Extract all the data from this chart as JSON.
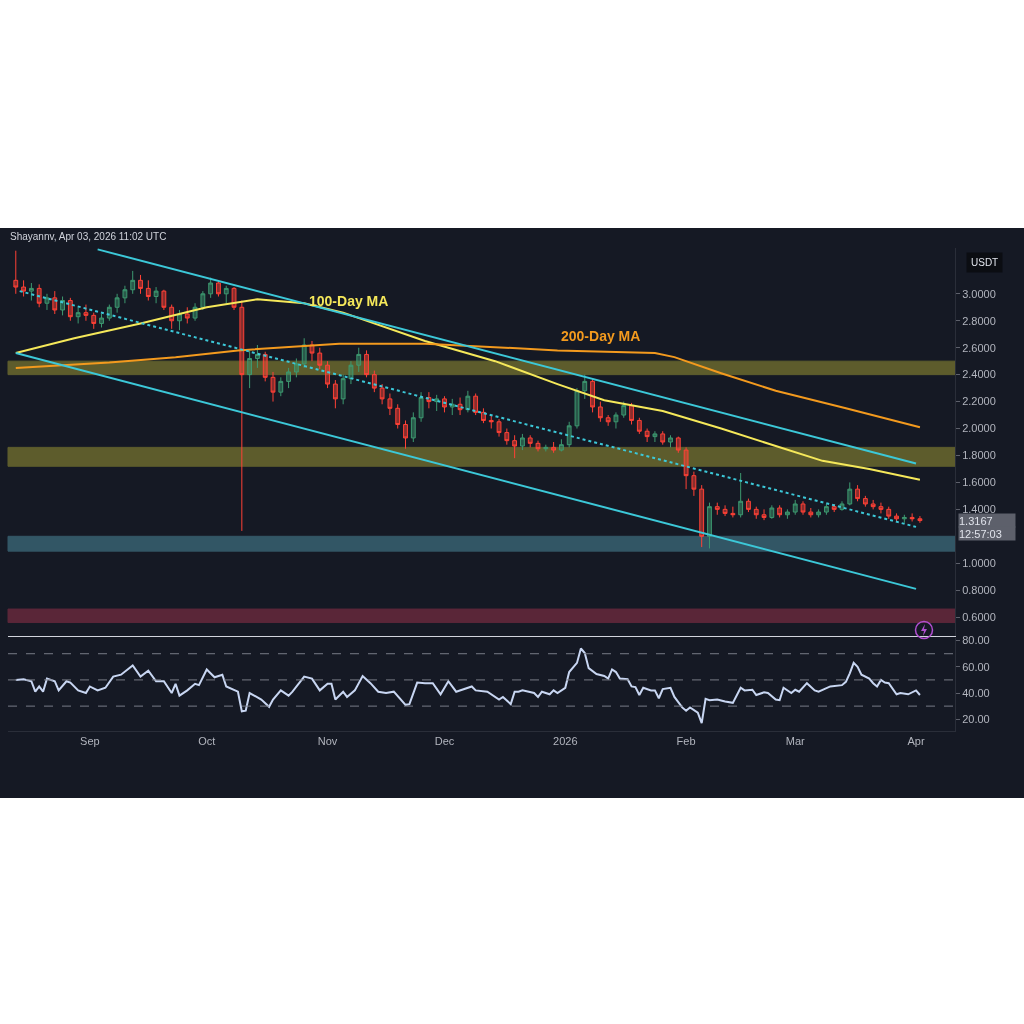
{
  "chart_data": [
    {
      "type": "candlestick",
      "ylabel": "USDT",
      "annotations": [
        "Shayannv, Apr 03, 2026 11:02 UTC",
        "1.3167",
        "12:57:03"
      ],
      "x": [
        "2025-08-13",
        "2025-08-15",
        "2025-08-17",
        "2025-08-19",
        "2025-08-21",
        "2025-08-23",
        "2025-08-25",
        "2025-08-27",
        "2025-08-29",
        "2025-08-31",
        "2025-09-02",
        "2025-09-04",
        "2025-09-06",
        "2025-09-08",
        "2025-09-10",
        "2025-09-12",
        "2025-09-14",
        "2025-09-16",
        "2025-09-18",
        "2025-09-20",
        "2025-09-22",
        "2025-09-24",
        "2025-09-26",
        "2025-09-28",
        "2025-09-30",
        "2025-10-02",
        "2025-10-04",
        "2025-10-06",
        "2025-10-08",
        "2025-10-10",
        "2025-10-12",
        "2025-10-14",
        "2025-10-16",
        "2025-10-18",
        "2025-10-20",
        "2025-10-22",
        "2025-10-24",
        "2025-10-26",
        "2025-10-28",
        "2025-10-30",
        "2025-11-01",
        "2025-11-03",
        "2025-11-05",
        "2025-11-07",
        "2025-11-09",
        "2025-11-11",
        "2025-11-13",
        "2025-11-15",
        "2025-11-17",
        "2025-11-19",
        "2025-11-21",
        "2025-11-23",
        "2025-11-25",
        "2025-11-27",
        "2025-11-29",
        "2025-12-01",
        "2025-12-03",
        "2025-12-05",
        "2025-12-07",
        "2025-12-09",
        "2025-12-11",
        "2025-12-13",
        "2025-12-15",
        "2025-12-17",
        "2025-12-19",
        "2025-12-21",
        "2025-12-23",
        "2025-12-25",
        "2025-12-27",
        "2025-12-29",
        "2025-12-31",
        "2026-01-02",
        "2026-01-04",
        "2026-01-06",
        "2026-01-08",
        "2026-01-10",
        "2026-01-12",
        "2026-01-14",
        "2026-01-16",
        "2026-01-18",
        "2026-01-20",
        "2026-01-22",
        "2026-01-24",
        "2026-01-26",
        "2026-01-28",
        "2026-01-30",
        "2026-02-01",
        "2026-02-03",
        "2026-02-05",
        "2026-02-07",
        "2026-02-09",
        "2026-02-11",
        "2026-02-13",
        "2026-02-15",
        "2026-02-17",
        "2026-02-19",
        "2026-02-21",
        "2026-02-23",
        "2026-02-25",
        "2026-02-27",
        "2026-03-01",
        "2026-03-03",
        "2026-03-05",
        "2026-03-07",
        "2026-03-09",
        "2026-03-11",
        "2026-03-13",
        "2026-03-15",
        "2026-03-17",
        "2026-03-19",
        "2026-03-21",
        "2026-03-23",
        "2026-03-25",
        "2026-03-27",
        "2026-03-29",
        "2026-03-31",
        "2026-04-02"
      ],
      "ohlc": [
        [
          3.1,
          3.32,
          3.0,
          3.05
        ],
        [
          3.05,
          3.1,
          2.98,
          3.02
        ],
        [
          3.02,
          3.08,
          2.95,
          3.04
        ],
        [
          3.04,
          3.07,
          2.9,
          2.93
        ],
        [
          2.93,
          3.0,
          2.88,
          2.97
        ],
        [
          2.97,
          3.02,
          2.85,
          2.88
        ],
        [
          2.88,
          2.98,
          2.84,
          2.95
        ],
        [
          2.95,
          2.97,
          2.8,
          2.83
        ],
        [
          2.83,
          2.9,
          2.78,
          2.86
        ],
        [
          2.86,
          2.92,
          2.8,
          2.84
        ],
        [
          2.84,
          2.86,
          2.74,
          2.78
        ],
        [
          2.78,
          2.85,
          2.75,
          2.82
        ],
        [
          2.82,
          2.92,
          2.8,
          2.9
        ],
        [
          2.9,
          3.0,
          2.86,
          2.97
        ],
        [
          2.97,
          3.06,
          2.93,
          3.03
        ],
        [
          3.03,
          3.17,
          3.0,
          3.1
        ],
        [
          3.1,
          3.14,
          3.0,
          3.04
        ],
        [
          3.04,
          3.1,
          2.95,
          2.98
        ],
        [
          2.98,
          3.05,
          2.93,
          3.02
        ],
        [
          3.02,
          3.03,
          2.88,
          2.9
        ],
        [
          2.9,
          2.92,
          2.74,
          2.8
        ],
        [
          2.8,
          2.88,
          2.73,
          2.85
        ],
        [
          2.85,
          2.9,
          2.78,
          2.82
        ],
        [
          2.82,
          2.93,
          2.8,
          2.9
        ],
        [
          2.9,
          3.02,
          2.88,
          3.0
        ],
        [
          3.0,
          3.12,
          2.97,
          3.08
        ],
        [
          3.08,
          3.1,
          2.98,
          3.0
        ],
        [
          3.0,
          3.06,
          2.93,
          3.04
        ],
        [
          3.04,
          3.05,
          2.88,
          2.9
        ],
        [
          2.9,
          2.95,
          1.24,
          2.4
        ],
        [
          2.4,
          2.58,
          2.3,
          2.52
        ],
        [
          2.52,
          2.62,
          2.45,
          2.55
        ],
        [
          2.55,
          2.57,
          2.35,
          2.38
        ],
        [
          2.38,
          2.42,
          2.2,
          2.27
        ],
        [
          2.27,
          2.38,
          2.24,
          2.35
        ],
        [
          2.35,
          2.45,
          2.3,
          2.42
        ],
        [
          2.42,
          2.52,
          2.38,
          2.48
        ],
        [
          2.48,
          2.67,
          2.45,
          2.62
        ],
        [
          2.62,
          2.65,
          2.5,
          2.56
        ],
        [
          2.56,
          2.6,
          2.44,
          2.47
        ],
        [
          2.47,
          2.5,
          2.3,
          2.33
        ],
        [
          2.33,
          2.36,
          2.15,
          2.22
        ],
        [
          2.22,
          2.4,
          2.18,
          2.37
        ],
        [
          2.37,
          2.5,
          2.33,
          2.47
        ],
        [
          2.47,
          2.6,
          2.42,
          2.55
        ],
        [
          2.55,
          2.58,
          2.38,
          2.4
        ],
        [
          2.4,
          2.43,
          2.27,
          2.3
        ],
        [
          2.3,
          2.33,
          2.18,
          2.22
        ],
        [
          2.22,
          2.26,
          2.1,
          2.15
        ],
        [
          2.15,
          2.18,
          2.0,
          2.03
        ],
        [
          2.03,
          2.06,
          1.85,
          1.93
        ],
        [
          1.93,
          2.12,
          1.9,
          2.08
        ],
        [
          2.08,
          2.27,
          2.05,
          2.23
        ],
        [
          2.23,
          2.27,
          2.15,
          2.2
        ],
        [
          2.2,
          2.25,
          2.13,
          2.22
        ],
        [
          2.22,
          2.24,
          2.12,
          2.16
        ],
        [
          2.16,
          2.22,
          2.1,
          2.18
        ],
        [
          2.18,
          2.23,
          2.1,
          2.14
        ],
        [
          2.14,
          2.28,
          2.12,
          2.24
        ],
        [
          2.24,
          2.26,
          2.1,
          2.12
        ],
        [
          2.12,
          2.15,
          2.04,
          2.06
        ],
        [
          2.06,
          2.1,
          2.0,
          2.05
        ],
        [
          2.05,
          2.07,
          1.94,
          1.97
        ],
        [
          1.97,
          2.0,
          1.88,
          1.91
        ],
        [
          1.91,
          1.95,
          1.78,
          1.87
        ],
        [
          1.87,
          1.96,
          1.84,
          1.93
        ],
        [
          1.93,
          1.95,
          1.86,
          1.89
        ],
        [
          1.89,
          1.91,
          1.83,
          1.85
        ],
        [
          1.85,
          1.88,
          1.83,
          1.86
        ],
        [
          1.86,
          1.9,
          1.82,
          1.84
        ],
        [
          1.84,
          1.92,
          1.83,
          1.88
        ],
        [
          1.88,
          2.05,
          1.86,
          2.02
        ],
        [
          2.02,
          2.3,
          2.0,
          2.28
        ],
        [
          2.28,
          2.4,
          2.22,
          2.35
        ],
        [
          2.35,
          2.37,
          2.12,
          2.16
        ],
        [
          2.16,
          2.2,
          2.05,
          2.08
        ],
        [
          2.08,
          2.1,
          2.02,
          2.05
        ],
        [
          2.05,
          2.12,
          2.0,
          2.1
        ],
        [
          2.1,
          2.2,
          2.08,
          2.17
        ],
        [
          2.17,
          2.19,
          2.03,
          2.06
        ],
        [
          2.06,
          2.08,
          1.96,
          1.98
        ],
        [
          1.98,
          2.0,
          1.9,
          1.94
        ],
        [
          1.94,
          1.98,
          1.9,
          1.96
        ],
        [
          1.96,
          1.98,
          1.88,
          1.9
        ],
        [
          1.9,
          1.95,
          1.86,
          1.93
        ],
        [
          1.93,
          1.94,
          1.82,
          1.84
        ],
        [
          1.84,
          1.86,
          1.55,
          1.65
        ],
        [
          1.65,
          1.68,
          1.5,
          1.55
        ],
        [
          1.55,
          1.58,
          1.12,
          1.2
        ],
        [
          1.2,
          1.45,
          1.11,
          1.42
        ],
        [
          1.42,
          1.45,
          1.36,
          1.4
        ],
        [
          1.4,
          1.43,
          1.35,
          1.37
        ],
        [
          1.37,
          1.42,
          1.34,
          1.36
        ],
        [
          1.36,
          1.67,
          1.34,
          1.46
        ],
        [
          1.46,
          1.48,
          1.38,
          1.4
        ],
        [
          1.4,
          1.42,
          1.33,
          1.36
        ],
        [
          1.36,
          1.4,
          1.32,
          1.34
        ],
        [
          1.34,
          1.43,
          1.33,
          1.41
        ],
        [
          1.41,
          1.43,
          1.34,
          1.36
        ],
        [
          1.36,
          1.4,
          1.33,
          1.38
        ],
        [
          1.38,
          1.47,
          1.36,
          1.44
        ],
        [
          1.44,
          1.46,
          1.36,
          1.38
        ],
        [
          1.38,
          1.41,
          1.34,
          1.36
        ],
        [
          1.36,
          1.4,
          1.34,
          1.38
        ],
        [
          1.38,
          1.44,
          1.36,
          1.42
        ],
        [
          1.42,
          1.44,
          1.38,
          1.4
        ],
        [
          1.4,
          1.46,
          1.39,
          1.44
        ],
        [
          1.44,
          1.6,
          1.43,
          1.55
        ],
        [
          1.55,
          1.58,
          1.46,
          1.48
        ],
        [
          1.48,
          1.5,
          1.42,
          1.44
        ],
        [
          1.44,
          1.47,
          1.4,
          1.42
        ],
        [
          1.42,
          1.45,
          1.37,
          1.4
        ],
        [
          1.4,
          1.42,
          1.33,
          1.35
        ],
        [
          1.35,
          1.37,
          1.31,
          1.33
        ],
        [
          1.33,
          1.36,
          1.3,
          1.34
        ],
        [
          1.34,
          1.37,
          1.31,
          1.33
        ],
        [
          1.33,
          1.35,
          1.3,
          1.3167
        ]
      ],
      "series": [
        {
          "type": "line",
          "name": "100-Day MA",
          "color": "#f5e85a",
          "x": [
            "2025-08-13",
            "2025-08-28",
            "2025-09-14",
            "2025-10-01",
            "2025-10-14",
            "2025-10-26",
            "2025-11-05",
            "2025-11-26",
            "2025-12-14",
            "2025-12-30",
            "2026-01-11",
            "2026-01-26",
            "2026-02-10",
            "2026-02-24",
            "2026-03-08",
            "2026-03-20",
            "2026-04-02"
          ],
          "values": [
            2.56,
            2.67,
            2.78,
            2.9,
            2.96,
            2.93,
            2.86,
            2.65,
            2.5,
            2.33,
            2.21,
            2.13,
            2.0,
            1.87,
            1.76,
            1.7,
            1.62
          ]
        },
        {
          "type": "line",
          "name": "200-Day MA",
          "color": "#f39a1e",
          "x": [
            "2025-08-13",
            "2025-09-06",
            "2025-09-23",
            "2025-10-09",
            "2025-11-04",
            "2025-11-26",
            "2025-12-30",
            "2026-01-24",
            "2026-01-29",
            "2026-02-10",
            "2026-02-24",
            "2026-03-14",
            "2026-04-02"
          ],
          "values": [
            2.45,
            2.49,
            2.53,
            2.58,
            2.63,
            2.63,
            2.58,
            2.56,
            2.53,
            2.41,
            2.28,
            2.15,
            2.01
          ]
        },
        {
          "type": "line",
          "color": "#3cc8d8",
          "x": [
            "2025-09-03",
            "2026-04-01"
          ],
          "values": [
            3.33,
            1.74
          ]
        },
        {
          "type": "line",
          "color": "#3cc8d8",
          "x": [
            "2025-08-13",
            "2026-04-01"
          ],
          "values": [
            2.56,
            0.81
          ]
        },
        {
          "type": "line",
          "color": "#3cc8d8",
          "line_style": "dotted",
          "x": [
            "2025-08-14",
            "2026-04-01"
          ],
          "values": [
            3.02,
            1.27
          ]
        }
      ],
      "bands": [
        {
          "axis": "y",
          "from": 2.4,
          "to": 2.5,
          "color": "#c9c23a"
        },
        {
          "axis": "y",
          "from": 1.72,
          "to": 1.86,
          "color": "#c9c23a"
        },
        {
          "axis": "y",
          "from": 1.09,
          "to": 1.2,
          "color": "#5fb3c8"
        },
        {
          "axis": "y",
          "from": 0.56,
          "to": 0.66,
          "color": "#c23a58"
        }
      ],
      "xlim": [
        "2025-08-11",
        "2026-04-11"
      ],
      "ylim": [
        0.46,
        3.34
      ],
      "yticks": [
        {
          "value": 0.6,
          "label": "0.6000"
        },
        {
          "value": 0.8,
          "label": "0.8000"
        },
        {
          "value": 1.0,
          "label": "1.0000"
        },
        {
          "value": 1.4,
          "label": "1.4000"
        },
        {
          "value": 1.6,
          "label": "1.6000"
        },
        {
          "value": 1.8,
          "label": "1.8000"
        },
        {
          "value": 2.0,
          "label": "2.0000"
        },
        {
          "value": 2.2,
          "label": "2.2000"
        },
        {
          "value": 2.4,
          "label": "2.4000"
        },
        {
          "value": 2.6,
          "label": "2.6000"
        },
        {
          "value": 2.8,
          "label": "2.8000"
        },
        {
          "value": 3.0,
          "label": "3.0000"
        }
      ],
      "tick_labels": "y",
      "legend": false,
      "grid": false
    },
    {
      "type": "line",
      "x": [
        "2025-08-13",
        "2025-08-15",
        "2025-08-17",
        "2025-08-18",
        "2025-08-19",
        "2025-08-20",
        "2025-08-21",
        "2025-08-23",
        "2025-08-24",
        "2025-08-26",
        "2025-08-27",
        "2025-08-29",
        "2025-08-31",
        "2025-09-01",
        "2025-09-03",
        "2025-09-05",
        "2025-09-07",
        "2025-09-09",
        "2025-09-12",
        "2025-09-14",
        "2025-09-16",
        "2025-09-18",
        "2025-09-20",
        "2025-09-22",
        "2025-09-23",
        "2025-09-24",
        "2025-09-26",
        "2025-09-28",
        "2025-09-29",
        "2025-10-01",
        "2025-10-03",
        "2025-10-05",
        "2025-10-06",
        "2025-10-09",
        "2025-10-10",
        "2025-10-11",
        "2025-10-12",
        "2025-10-15",
        "2025-10-17",
        "2025-10-18",
        "2025-10-20",
        "2025-10-22",
        "2025-10-23",
        "2025-10-26",
        "2025-10-28",
        "2025-10-30",
        "2025-11-01",
        "2025-11-02",
        "2025-11-03",
        "2025-11-05",
        "2025-11-06",
        "2025-11-08",
        "2025-11-10",
        "2025-11-12",
        "2025-11-14",
        "2025-11-16",
        "2025-11-18",
        "2025-11-21",
        "2025-11-22",
        "2025-11-24",
        "2025-11-26",
        "2025-11-28",
        "2025-11-30",
        "2025-12-02",
        "2025-12-04",
        "2025-12-08",
        "2025-12-09",
        "2025-12-12",
        "2025-12-15",
        "2025-12-16",
        "2025-12-18",
        "2025-12-19",
        "2025-12-20",
        "2025-12-21",
        "2025-12-24",
        "2025-12-25",
        "2025-12-26",
        "2025-12-28",
        "2025-12-29",
        "2025-12-30",
        "2026-01-01",
        "2026-01-02",
        "2026-01-04",
        "2026-01-05",
        "2026-01-06",
        "2026-01-07",
        "2026-01-09",
        "2026-01-11",
        "2026-01-12",
        "2026-01-13",
        "2026-01-14",
        "2026-01-15",
        "2026-01-17",
        "2026-01-18",
        "2026-01-19",
        "2026-01-20",
        "2026-01-21",
        "2026-01-23",
        "2026-01-24",
        "2026-01-25",
        "2026-01-26",
        "2026-01-28",
        "2026-01-29",
        "2026-01-31",
        "2026-02-01",
        "2026-02-02",
        "2026-02-04",
        "2026-02-05",
        "2026-02-06",
        "2026-02-07",
        "2026-02-09",
        "2026-02-11",
        "2026-02-13",
        "2026-02-15",
        "2026-02-16",
        "2026-02-18",
        "2026-02-19",
        "2026-02-21",
        "2026-02-22",
        "2026-02-24",
        "2026-02-25",
        "2026-02-26",
        "2026-02-28",
        "2026-03-01",
        "2026-03-02",
        "2026-03-04",
        "2026-03-06",
        "2026-03-07",
        "2026-03-10",
        "2026-03-13",
        "2026-03-14",
        "2026-03-15",
        "2026-03-16",
        "2026-03-17",
        "2026-03-18",
        "2026-03-20",
        "2026-03-21",
        "2026-03-22",
        "2026-03-23",
        "2026-03-24",
        "2026-03-25",
        "2026-03-27",
        "2026-03-28",
        "2026-03-30",
        "2026-04-01",
        "2026-04-02"
      ],
      "series": [
        {
          "color": "#c8d6f2",
          "values": [
            50,
            50.5,
            49,
            41,
            45,
            41,
            51,
            49,
            42,
            49,
            48,
            42,
            40,
            45,
            42,
            44,
            52.5,
            54,
            61,
            52.5,
            57,
            49,
            49,
            40,
            47,
            38,
            42,
            47,
            46,
            58,
            52,
            54,
            45,
            41,
            26,
            26.5,
            40,
            35,
            29.5,
            35,
            42,
            38,
            41,
            52.5,
            51,
            42,
            47,
            47,
            35,
            41,
            37,
            42,
            53,
            47.5,
            41,
            40,
            41,
            31,
            31.5,
            48,
            47.5,
            47.5,
            39,
            49,
            41,
            45,
            42,
            41,
            35,
            37,
            31.5,
            41,
            41,
            42,
            40,
            37,
            41,
            39,
            42,
            40,
            44,
            56,
            63,
            74,
            70.5,
            59,
            54.5,
            53,
            51,
            58,
            56,
            51,
            50.5,
            45,
            44.5,
            38.5,
            44,
            42,
            42,
            36,
            43,
            44,
            37,
            29,
            26.5,
            29,
            25,
            17,
            35.5,
            34.5,
            35,
            33.5,
            32.5,
            44,
            42,
            42.5,
            38.5,
            40.5,
            40,
            35,
            34.5,
            44,
            40,
            42.5,
            41,
            47.5,
            42,
            41,
            45,
            46,
            48.5,
            55,
            63,
            60,
            54,
            51,
            47.5,
            45,
            50,
            48,
            47.5,
            39,
            40,
            39,
            42,
            38.5
          ]
        }
      ],
      "ref_lines": [
        {
          "axis": "y",
          "value": 70,
          "color": "#787b86",
          "line_style": "dashed"
        },
        {
          "axis": "y",
          "value": 50,
          "color": "#787b86",
          "line_style": "dashed"
        },
        {
          "axis": "y",
          "value": 30,
          "color": "#787b86",
          "line_style": "dashed"
        }
      ],
      "xlim": [
        "2025-08-11",
        "2026-04-11"
      ],
      "ylim": [
        11,
        82
      ],
      "xticks": [
        {
          "value": "2025-09-01",
          "label": "Sep"
        },
        {
          "value": "2025-10-01",
          "label": "Oct"
        },
        {
          "value": "2025-11-01",
          "label": "Nov"
        },
        {
          "value": "2025-12-01",
          "label": "Dec"
        },
        {
          "value": "2026-01-01",
          "label": "2026"
        },
        {
          "value": "2026-02-01",
          "label": "Feb"
        },
        {
          "value": "2026-03-01",
          "label": "Mar"
        },
        {
          "value": "2026-04-01",
          "label": "Apr"
        }
      ],
      "yticks": [
        {
          "value": 20,
          "label": "20.00"
        },
        {
          "value": 40,
          "label": "40.00"
        },
        {
          "value": 60,
          "label": "60.00"
        },
        {
          "value": 80,
          "label": "80.00"
        }
      ],
      "legend": false,
      "grid": false,
      "marker": "none"
    }
  ]
}
